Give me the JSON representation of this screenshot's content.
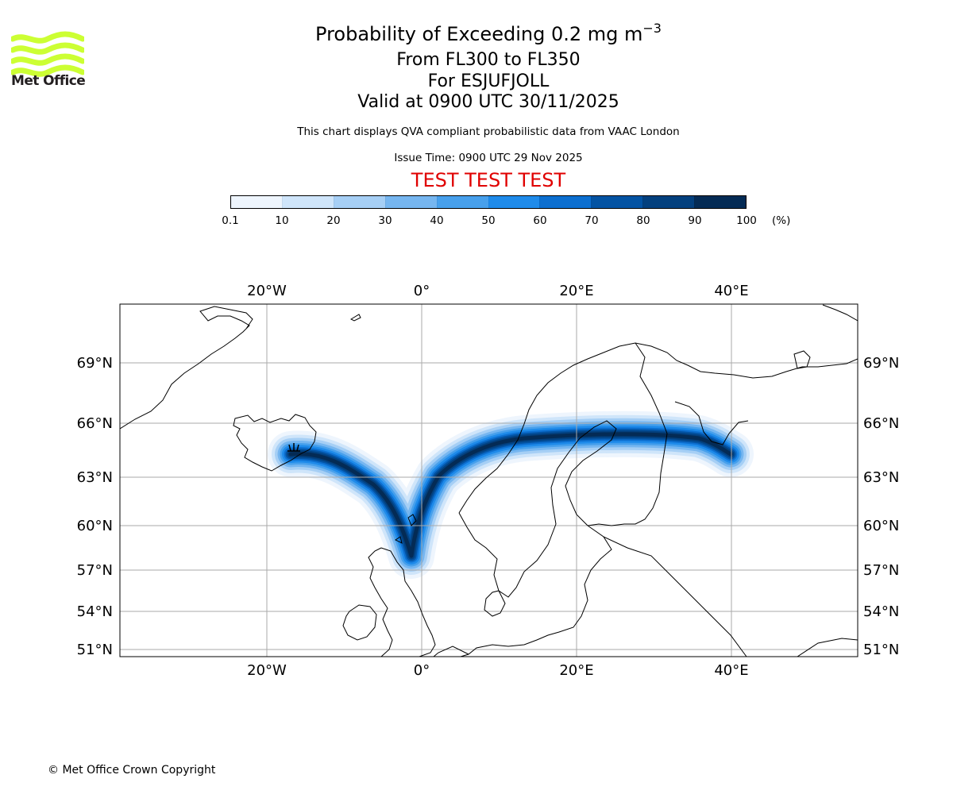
{
  "header": {
    "title": "Probability of Exceeding 0.2 mg m",
    "title_exponent": "−3",
    "flight_levels": "From FL300 to FL350",
    "volcano": "For ESJUFJOLL",
    "valid_time": "Valid at 0900 UTC 30/11/2025",
    "subtitle": "This chart displays QVA compliant probabilistic data from VAAC London",
    "issue_time": "Issue Time: 0900 UTC 29 Nov 2025",
    "test_banner": "TEST TEST TEST"
  },
  "logo": {
    "text": "Met Office",
    "color": "#ccff33"
  },
  "colorbar": {
    "ticks": [
      "0.1",
      "10",
      "20",
      "30",
      "40",
      "50",
      "60",
      "70",
      "80",
      "90",
      "100"
    ],
    "unit": "(%)",
    "colors": [
      "#eef5fd",
      "#cfe5fa",
      "#a6cff5",
      "#76b6f0",
      "#47a0ec",
      "#1f8bea",
      "#0c6fd0",
      "#0353a3",
      "#03407e",
      "#042b55"
    ]
  },
  "map": {
    "lon_labels": [
      "20°W",
      "0°",
      "20°E",
      "40°E"
    ],
    "lat_labels": [
      "69°N",
      "66°N",
      "63°N",
      "60°N",
      "57°N",
      "54°N",
      "51°N"
    ],
    "gridline_color": "#aaaaaa",
    "coastline_color": "#000000",
    "banner_color": "#e00000"
  },
  "footer": {
    "copyright": "© Met Office Crown Copyright"
  }
}
